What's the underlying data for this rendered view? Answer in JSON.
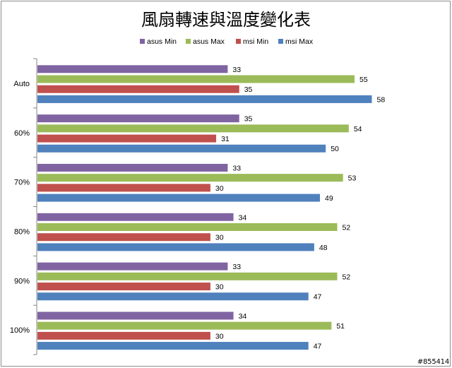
{
  "chart_data": {
    "type": "bar",
    "orientation": "horizontal",
    "title": "風扇轉速與溫度變化表",
    "categories": [
      "Auto",
      "60%",
      "70%",
      "80%",
      "90%",
      "100%"
    ],
    "series": [
      {
        "name": "asus Min",
        "color": "#8064a2",
        "values": [
          33,
          35,
          33,
          34,
          33,
          34
        ]
      },
      {
        "name": "asus Max",
        "color": "#9bbb59",
        "values": [
          55,
          54,
          53,
          52,
          52,
          51
        ]
      },
      {
        "name": "msi Min",
        "color": "#c0504d",
        "values": [
          35,
          31,
          30,
          30,
          30,
          30
        ]
      },
      {
        "name": "msi Max",
        "color": "#4f81bd",
        "values": [
          58,
          50,
          49,
          48,
          47,
          47
        ]
      }
    ],
    "legend_position": "top",
    "grid": false,
    "xlim": [
      0,
      60
    ]
  },
  "watermark": "#855414"
}
